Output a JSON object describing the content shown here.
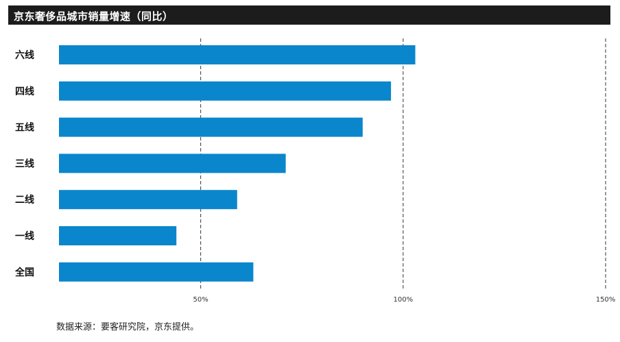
{
  "chart_data": {
    "type": "bar",
    "orientation": "horizontal",
    "title": "京东奢侈品城市销量增速（同比）",
    "categories": [
      "六线",
      "四线",
      "五线",
      "三线",
      "二线",
      "一线",
      "全国"
    ],
    "values": [
      103,
      97,
      90,
      71,
      59,
      44,
      63
    ],
    "xlim": [
      15,
      150
    ],
    "xticks": [
      50,
      100,
      150
    ],
    "xtick_labels": [
      "50%",
      "100%",
      "150%"
    ],
    "grid": "dashed vertical at ticks",
    "bar_color": "#0a86cc",
    "xlabel": "",
    "ylabel": ""
  },
  "source": "数据来源：要客研究院，京东提供。"
}
